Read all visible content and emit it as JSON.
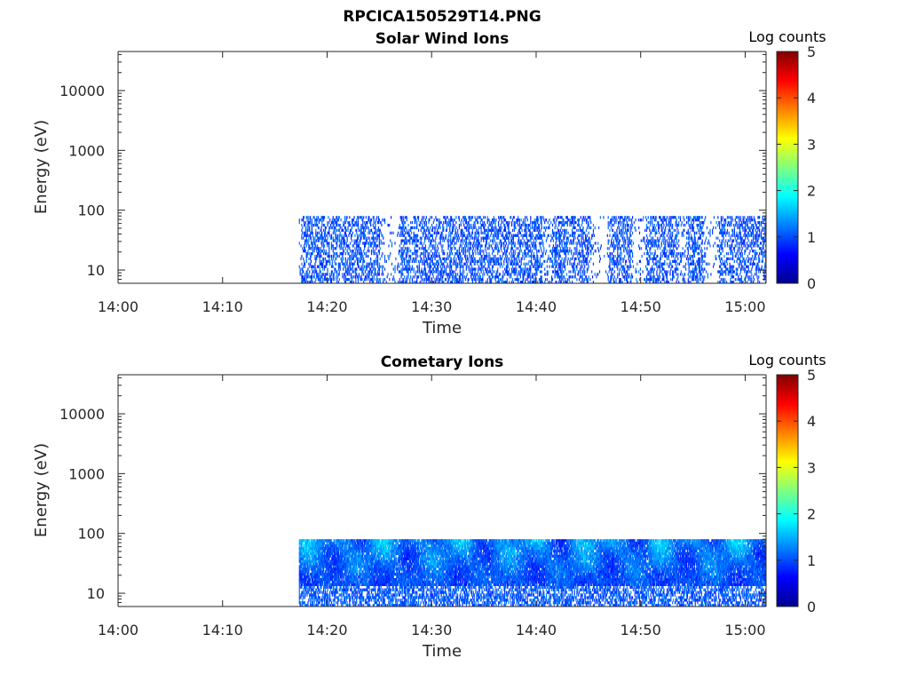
{
  "figure_title": "RPCICA150529T14.PNG",
  "chart_data": [
    {
      "type": "heatmap",
      "title": "Solar Wind Ions",
      "xlabel": "Time",
      "ylabel": "Energy (eV)",
      "x_ticks": [
        "14:00",
        "14:10",
        "14:20",
        "14:30",
        "14:40",
        "14:50",
        "15:00"
      ],
      "x_range_minutes": [
        0,
        62
      ],
      "y_scale": "log",
      "y_ticks": [
        10,
        100,
        1000,
        10000
      ],
      "y_range": [
        6,
        45000
      ],
      "colorbar": {
        "label": "Log counts",
        "range": [
          0,
          5
        ],
        "ticks": [
          0,
          1,
          2,
          3,
          4,
          5
        ],
        "colormap": "jet"
      },
      "data_start_minute": 17.3,
      "data_energy_range": [
        6,
        80
      ],
      "intensity_level": "low",
      "dense_intervals_minutes": [
        [
          17.5,
          25
        ],
        [
          27,
          40.5
        ],
        [
          41.5,
          45
        ],
        [
          47,
          49
        ],
        [
          50.5,
          53.5
        ],
        [
          54.5,
          56
        ],
        [
          57.5,
          62
        ]
      ],
      "gaps_minutes": [
        [
          25.5,
          26.8
        ],
        [
          45.5,
          46.8
        ],
        [
          49.2,
          50.3
        ],
        [
          56.2,
          57.3
        ]
      ]
    },
    {
      "type": "heatmap",
      "title": "Cometary Ions",
      "xlabel": "Time",
      "ylabel": "Energy (eV)",
      "x_ticks": [
        "14:00",
        "14:10",
        "14:20",
        "14:30",
        "14:40",
        "14:50",
        "15:00"
      ],
      "x_range_minutes": [
        0,
        62
      ],
      "y_scale": "log",
      "y_ticks": [
        10,
        100,
        1000,
        10000
      ],
      "y_range": [
        6,
        45000
      ],
      "colorbar": {
        "label": "Log counts",
        "range": [
          0,
          5
        ],
        "ticks": [
          0,
          1,
          2,
          3,
          4,
          5
        ],
        "colormap": "jet"
      },
      "data_start_minute": 17.3,
      "data_energy_range": [
        6,
        80
      ],
      "intensity_level": "high",
      "dense_intervals_minutes": [
        [
          17.3,
          62
        ]
      ],
      "gaps_minutes": []
    }
  ]
}
